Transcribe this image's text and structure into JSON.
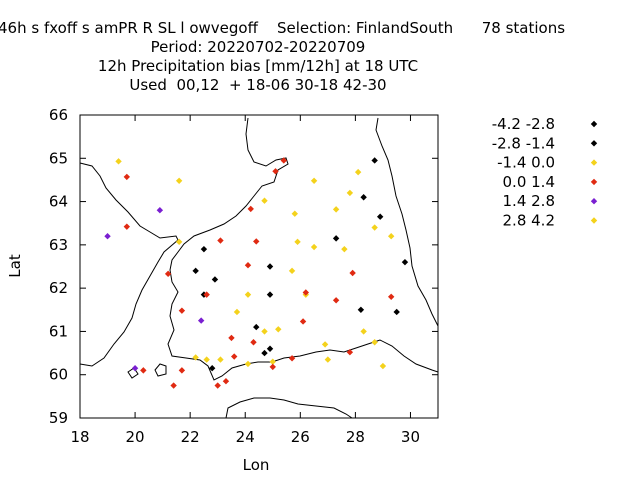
{
  "chart_data": {
    "type": "scatter",
    "title_lines": [
      "46h s fxoff s amPR R SL l owvegoff    Selection: FinlandSouth      78 stations",
      "Period: 20220702-20220709",
      "12h Precipitation bias [mm/12h] at  18 UTC",
      "Used  00,12  + 18-06 30-18 42-30"
    ],
    "xlabel": "Lon",
    "ylabel": "Lat",
    "xlim": [
      18,
      31
    ],
    "ylim": [
      59,
      66
    ],
    "xticks": [
      "18",
      "20",
      "22",
      "24",
      "26",
      "28",
      "30"
    ],
    "yticks": [
      "59",
      "60",
      "61",
      "62",
      "63",
      "64",
      "65",
      "66"
    ],
    "grid": false,
    "legend_position": "outside-right",
    "series": [
      {
        "name": "-4.2 -2.8",
        "color": "#000000",
        "points": [
          [
            28.7,
            64.95
          ]
        ]
      },
      {
        "name": "-2.8 -1.4",
        "color": "#000000",
        "points": [
          [
            28.3,
            64.1
          ],
          [
            28.9,
            63.65
          ],
          [
            27.3,
            63.15
          ],
          [
            29.8,
            62.6
          ],
          [
            22.5,
            62.9
          ],
          [
            22.2,
            62.4
          ],
          [
            24.9,
            62.5
          ],
          [
            22.9,
            62.2
          ],
          [
            22.5,
            61.85
          ],
          [
            24.9,
            61.85
          ],
          [
            28.2,
            61.5
          ],
          [
            29.5,
            61.45
          ],
          [
            24.4,
            61.1
          ],
          [
            24.9,
            60.6
          ],
          [
            24.7,
            60.5
          ],
          [
            22.8,
            60.15
          ]
        ]
      },
      {
        "name": "-1.4 0.0",
        "color": "#f4d21c",
        "points": [
          [
            19.4,
            64.93
          ],
          [
            21.6,
            64.48
          ],
          [
            28.1,
            64.68
          ],
          [
            26.5,
            64.48
          ],
          [
            24.7,
            64.02
          ],
          [
            25.8,
            63.72
          ],
          [
            27.3,
            63.82
          ],
          [
            27.8,
            64.2
          ],
          [
            28.7,
            63.4
          ],
          [
            29.3,
            63.2
          ],
          [
            21.6,
            63.07
          ],
          [
            25.9,
            63.07
          ],
          [
            26.5,
            62.95
          ],
          [
            27.6,
            62.9
          ],
          [
            25.7,
            62.4
          ],
          [
            24.1,
            61.85
          ],
          [
            26.2,
            61.85
          ],
          [
            23.7,
            61.45
          ],
          [
            24.7,
            61.0
          ],
          [
            25.2,
            61.05
          ],
          [
            26.9,
            60.7
          ],
          [
            27.0,
            60.35
          ],
          [
            28.7,
            60.75
          ],
          [
            28.3,
            61.0
          ],
          [
            29.0,
            60.2
          ],
          [
            23.1,
            60.35
          ],
          [
            24.1,
            60.25
          ],
          [
            25.0,
            60.3
          ],
          [
            22.2,
            60.4
          ],
          [
            22.6,
            60.35
          ]
        ]
      },
      {
        "name": "0.0 1.4",
        "color": "#e02a12",
        "points": [
          [
            19.7,
            64.57
          ],
          [
            25.4,
            64.95
          ],
          [
            25.1,
            64.7
          ],
          [
            24.2,
            63.83
          ],
          [
            19.7,
            63.42
          ],
          [
            23.1,
            63.1
          ],
          [
            24.4,
            63.08
          ],
          [
            21.2,
            62.33
          ],
          [
            24.1,
            62.53
          ],
          [
            27.9,
            62.35
          ],
          [
            26.2,
            61.9
          ],
          [
            27.3,
            61.72
          ],
          [
            29.3,
            61.8
          ],
          [
            21.7,
            61.48
          ],
          [
            22.6,
            61.85
          ],
          [
            26.1,
            61.23
          ],
          [
            23.5,
            60.85
          ],
          [
            24.3,
            60.75
          ],
          [
            23.6,
            60.42
          ],
          [
            25.7,
            60.38
          ],
          [
            27.8,
            60.52
          ],
          [
            21.7,
            60.1
          ],
          [
            25.0,
            60.18
          ],
          [
            21.4,
            59.75
          ],
          [
            23.0,
            59.75
          ],
          [
            23.3,
            59.85
          ],
          [
            20.3,
            60.1
          ]
        ]
      },
      {
        "name": "1.4 2.8",
        "color": "#7a1fd1",
        "points": [
          [
            19.0,
            63.2
          ],
          [
            20.9,
            63.8
          ],
          [
            22.4,
            61.25
          ],
          [
            20.0,
            60.15
          ]
        ]
      },
      {
        "name": "2.8 4.2",
        "color": "#f4d21c",
        "points": []
      }
    ]
  }
}
